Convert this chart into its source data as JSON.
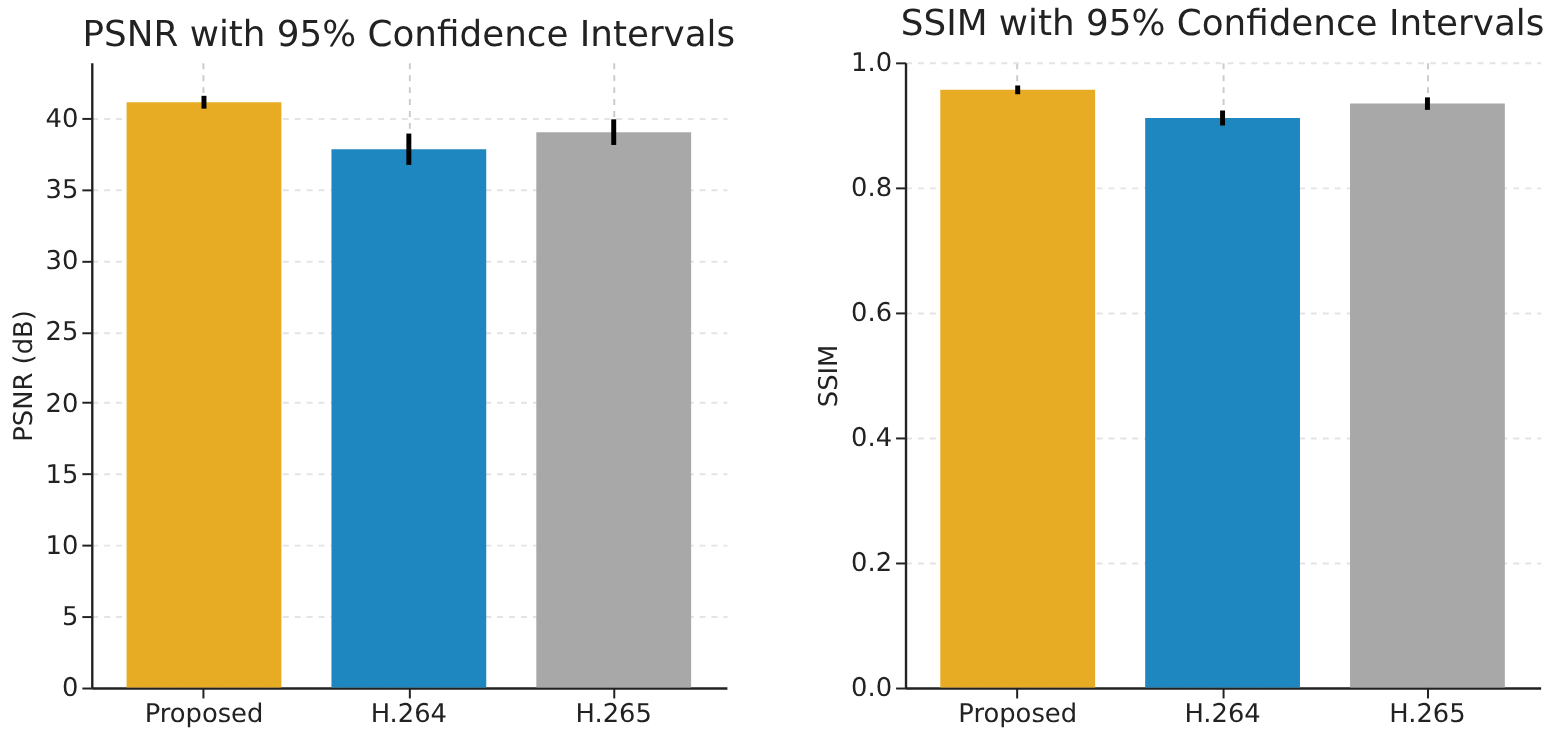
{
  "chart_data": [
    {
      "type": "bar",
      "title": "PSNR with 95% Confidence Intervals",
      "ylabel": "PSNR (dB)",
      "categories": [
        "Proposed",
        "H.264",
        "H.265"
      ],
      "values": [
        41.1,
        37.8,
        39.0
      ],
      "colors": [
        "#e8ac24",
        "#1f87bf",
        "#a8a8a8"
      ],
      "errors": [
        0.45,
        1.1,
        0.9
      ],
      "ylim": [
        0,
        43.9
      ],
      "yticks": [
        0,
        5,
        10,
        15,
        20,
        25,
        30,
        35,
        40
      ],
      "grid": true
    },
    {
      "type": "bar",
      "title": "SSIM with 95% Confidence Intervals",
      "ylabel": "SSIM",
      "categories": [
        "Proposed",
        "H.264",
        "H.265"
      ],
      "values": [
        0.956,
        0.911,
        0.934
      ],
      "colors": [
        "#e8ac24",
        "#1f87bf",
        "#a8a8a8"
      ],
      "errors": [
        0.007,
        0.012,
        0.01
      ],
      "ylim": [
        0,
        1.0
      ],
      "yticks": [
        {
          "value": 0,
          "label": "0.0"
        },
        0.2,
        0.4,
        0.6,
        0.8,
        {
          "value": 1,
          "label": "1.0"
        }
      ],
      "grid": true
    }
  ]
}
